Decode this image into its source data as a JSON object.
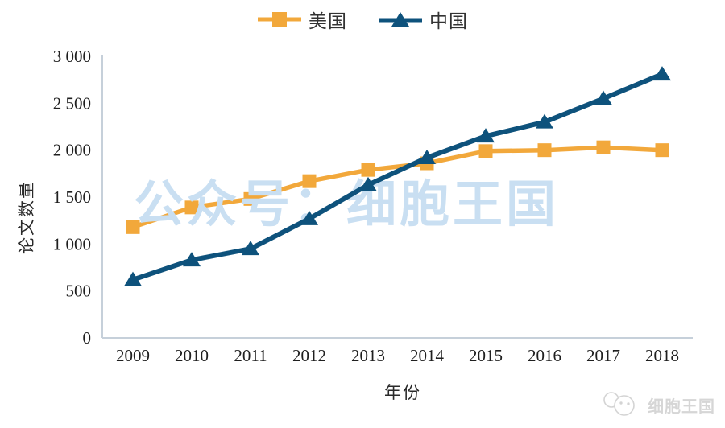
{
  "legend": {
    "us": {
      "label": "美国",
      "marker": "square"
    },
    "china": {
      "label": "中国",
      "marker": "triangle"
    }
  },
  "watermark": "公众号：细胞王国",
  "footer_logo": {
    "text": "细胞王国",
    "icon": "cell-icon"
  },
  "colors": {
    "us": "#F2A83B",
    "china": "#0E527C",
    "watermark": "#C9DFF2",
    "axis": "#C6D0DA",
    "text": "#1F1F1F",
    "logo": "#D6D6D6"
  },
  "chart_data": {
    "type": "line",
    "title": "",
    "xlabel": "年份",
    "ylabel": "论文数量",
    "x": [
      2009,
      2010,
      2011,
      2012,
      2013,
      2014,
      2015,
      2016,
      2017,
      2018
    ],
    "series": [
      {
        "name": "美国",
        "marker": "square",
        "color_key": "us",
        "values": [
          1180,
          1390,
          1480,
          1670,
          1790,
          1860,
          1990,
          2000,
          2030,
          2000
        ]
      },
      {
        "name": "中国",
        "marker": "triangle",
        "color_key": "china",
        "values": [
          620,
          830,
          950,
          1270,
          1630,
          1920,
          2150,
          2300,
          2550,
          2810
        ]
      }
    ],
    "ylim": [
      0,
      3000
    ],
    "ytick_step": 500,
    "ytick_labels": [
      "0",
      "500",
      "1 000",
      "1 500",
      "2 000",
      "2 500",
      "3 000"
    ],
    "grid": false,
    "legend_position": "top-center"
  }
}
